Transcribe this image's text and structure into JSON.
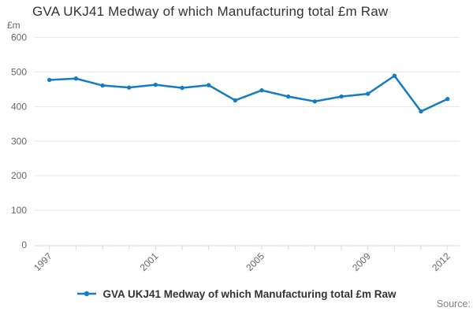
{
  "title": "GVA UKJ41 Medway of which Manufacturing total £m Raw",
  "y_axis_unit_label": "£m",
  "legend": {
    "label": "GVA UKJ41 Medway of which Manufacturing total £m Raw"
  },
  "source_label": "Source:",
  "colors": {
    "line": "#147dc2",
    "grid": "#e6e6e6",
    "axis": "#ccd6eb",
    "tick_label": "#666666",
    "title_text": "#333333",
    "legend_text": "#333333",
    "source_text": "#808080"
  },
  "chart_data": {
    "type": "line",
    "title": "GVA UKJ41 Medway of which Manufacturing total £m Raw",
    "x": [
      1997,
      1998,
      1999,
      2000,
      2001,
      2002,
      2003,
      2004,
      2005,
      2006,
      2007,
      2008,
      2009,
      2010,
      2011,
      2012
    ],
    "series": [
      {
        "name": "GVA UKJ41 Medway of which Manufacturing total £m Raw",
        "values": [
          477,
          481,
          461,
          455,
          463,
          454,
          462,
          418,
          447,
          429,
          415,
          429,
          437,
          489,
          386,
          422
        ]
      }
    ],
    "xlabel": "",
    "ylabel": "£m",
    "ylim": [
      0,
      600
    ],
    "y_ticks": [
      0,
      100,
      200,
      300,
      400,
      500,
      600
    ],
    "x_labeled_ticks": [
      1997,
      2001,
      2005,
      2009,
      2012
    ],
    "grid": "horizontal",
    "legend_position": "bottom",
    "marker": "circle"
  }
}
